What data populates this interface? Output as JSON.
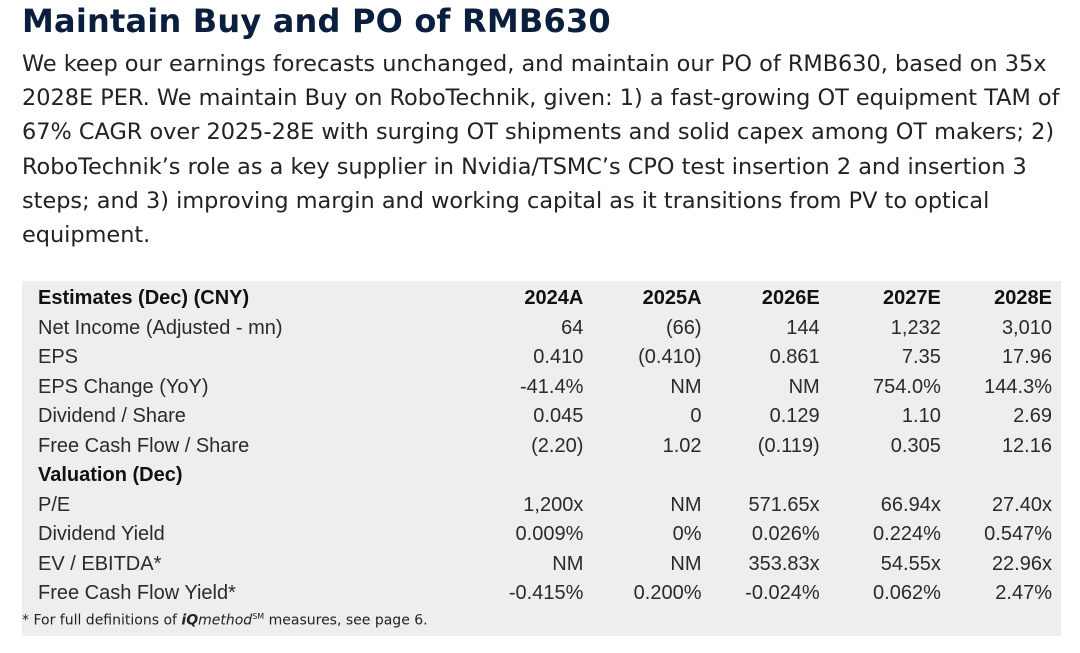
{
  "title": "Maintain Buy and PO of RMB630",
  "paragraph": "We keep our earnings forecasts unchanged, and maintain our PO of RMB630, based on 35x 2028E PER. We maintain Buy on RoboTechnik, given: 1) a fast-growing OT equipment TAM of 67% CAGR over 2025-28E with surging OT shipments and solid capex among OT makers; 2) RoboTechnik’s role as a key supplier in Nvidia/TSMC’s CPO test insertion 2 and insertion 3 steps; and 3) improving margin and working capital as it transitions from PV to optical equipment.",
  "table": {
    "estimates_header": [
      "Estimates (Dec) (CNY)",
      "2024A",
      "2025A",
      "2026E",
      "2027E",
      "2028E"
    ],
    "estimates_rows": [
      [
        "Net Income (Adjusted - mn)",
        "64",
        "(66)",
        "144",
        "1,232",
        "3,010"
      ],
      [
        "EPS",
        "0.410",
        "(0.410)",
        "0.861",
        "7.35",
        "17.96"
      ],
      [
        "EPS Change (YoY)",
        "-41.4%",
        "NM",
        "NM",
        "754.0%",
        "144.3%"
      ],
      [
        "Dividend / Share",
        "0.045",
        "0",
        "0.129",
        "1.10",
        "2.69"
      ],
      [
        "Free Cash Flow / Share",
        "(2.20)",
        "1.02",
        "(0.119)",
        "0.305",
        "12.16"
      ]
    ],
    "valuation_header": "Valuation (Dec)",
    "valuation_rows": [
      [
        "P/E",
        "1,200x",
        "NM",
        "571.65x",
        "66.94x",
        "27.40x"
      ],
      [
        "Dividend Yield",
        "0.009%",
        "0%",
        "0.026%",
        "0.224%",
        "0.547%"
      ],
      [
        "EV / EBITDA*",
        "NM",
        "NM",
        "353.83x",
        "54.55x",
        "22.96x"
      ],
      [
        "Free Cash Flow Yield*",
        "-0.415%",
        "0.200%",
        "-0.024%",
        "0.062%",
        "2.47%"
      ]
    ]
  },
  "footnote": {
    "prefix": "* For full definitions of ",
    "brand_iq": "iQ",
    "brand_method": "method",
    "brand_sm": "SM",
    "suffix": " measures, see page 6."
  }
}
